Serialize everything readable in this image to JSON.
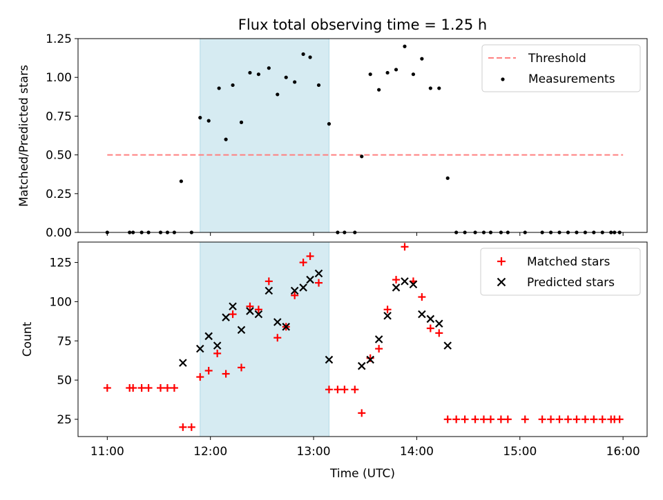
{
  "chart_data": [
    {
      "type": "scatter",
      "title": "Flux total observing time = 1.25 h",
      "ylabel": "Matched/Predicted stars",
      "xlabel": "",
      "xlim": [
        "10:43",
        "16:14"
      ],
      "ylim": [
        0,
        1.25
      ],
      "yticks": [
        "0.00",
        "0.25",
        "0.50",
        "0.75",
        "1.00",
        "1.25"
      ],
      "grid": false,
      "legend": "top-right",
      "shaded_span": [
        "11:54",
        "13:09"
      ],
      "threshold": {
        "name": "Threshold",
        "value": 0.5,
        "x_start": "11:00",
        "x_end": "16:00",
        "color": "#ff7f7f"
      },
      "series": [
        {
          "name": "Measurements",
          "color": "#000000",
          "x": [
            "11:00",
            "11:13",
            "11:15",
            "11:20",
            "11:24",
            "11:31",
            "11:35",
            "11:39",
            "11:43",
            "11:49",
            "11:54",
            "11:59",
            "12:05",
            "12:09",
            "12:13",
            "12:18",
            "12:23",
            "12:28",
            "12:34",
            "12:39",
            "12:44",
            "12:49",
            "12:54",
            "12:58",
            "13:03",
            "13:09",
            "13:14",
            "13:18",
            "13:24",
            "13:28",
            "13:33",
            "13:38",
            "13:43",
            "13:48",
            "13:53",
            "13:58",
            "14:03",
            "14:08",
            "14:13",
            "14:18",
            "14:23",
            "14:28",
            "14:34",
            "14:39",
            "14:43",
            "14:49",
            "14:53",
            "15:03",
            "15:13",
            "15:18",
            "15:23",
            "15:28",
            "15:33",
            "15:38",
            "15:43",
            "15:48",
            "15:53",
            "15:55",
            "15:58"
          ],
          "values": [
            0,
            0,
            0,
            0,
            0,
            0,
            0,
            0,
            0.33,
            0,
            0.74,
            0.72,
            0.93,
            0.6,
            0.95,
            0.71,
            1.03,
            1.02,
            1.06,
            0.89,
            1.0,
            0.97,
            1.15,
            1.13,
            0.95,
            0.7,
            0,
            0,
            0,
            0.49,
            1.02,
            0.92,
            1.03,
            1.05,
            1.2,
            1.02,
            1.12,
            0.93,
            0.93,
            0.35,
            0,
            0,
            0,
            0,
            0,
            0,
            0,
            0,
            0,
            0,
            0,
            0,
            0,
            0,
            0,
            0,
            0,
            0,
            0
          ]
        }
      ]
    },
    {
      "type": "scatter",
      "title": "",
      "ylabel": "Count",
      "xlabel": "Time (UTC)",
      "xlim": [
        "10:43",
        "16:14"
      ],
      "xticks": [
        "11:00",
        "12:00",
        "13:00",
        "14:00",
        "15:00",
        "16:00"
      ],
      "ylim": [
        14,
        138
      ],
      "yticks": [
        "25",
        "50",
        "75",
        "100",
        "125"
      ],
      "grid": false,
      "legend": "top-right",
      "shaded_span": [
        "11:54",
        "13:09"
      ],
      "series": [
        {
          "name": "Matched stars",
          "marker": "plus",
          "color": "#ff0000",
          "x": [
            "11:00",
            "11:13",
            "11:15",
            "11:20",
            "11:24",
            "11:31",
            "11:35",
            "11:39",
            "11:44",
            "11:49",
            "11:54",
            "11:59",
            "12:04",
            "12:09",
            "12:13",
            "12:18",
            "12:23",
            "12:28",
            "12:34",
            "12:39",
            "12:44",
            "12:49",
            "12:54",
            "12:58",
            "13:03",
            "13:09",
            "13:14",
            "13:18",
            "13:24",
            "13:28",
            "13:33",
            "13:38",
            "13:43",
            "13:48",
            "13:53",
            "13:58",
            "14:03",
            "14:08",
            "14:13",
            "14:18",
            "14:23",
            "14:28",
            "14:34",
            "14:39",
            "14:43",
            "14:49",
            "14:53",
            "15:03",
            "15:13",
            "15:18",
            "15:23",
            "15:28",
            "15:33",
            "15:38",
            "15:43",
            "15:48",
            "15:53",
            "15:55",
            "15:58"
          ],
          "values": [
            45,
            45,
            45,
            45,
            45,
            45,
            45,
            45,
            20,
            20,
            52,
            56,
            67,
            54,
            92,
            58,
            97,
            95,
            113,
            77,
            84,
            104,
            125,
            129,
            112,
            44,
            44,
            44,
            44,
            29,
            64,
            70,
            95,
            114,
            135,
            113,
            103,
            83,
            80,
            25,
            25,
            25,
            25,
            25,
            25,
            25,
            25,
            25,
            25,
            25,
            25,
            25,
            25,
            25,
            25,
            25,
            25,
            25,
            25
          ]
        },
        {
          "name": "Predicted stars",
          "marker": "x",
          "color": "#000000",
          "x": [
            "11:44",
            "11:54",
            "11:59",
            "12:04",
            "12:09",
            "12:13",
            "12:18",
            "12:23",
            "12:28",
            "12:34",
            "12:39",
            "12:44",
            "12:49",
            "12:54",
            "12:58",
            "13:03",
            "13:09",
            "13:28",
            "13:33",
            "13:38",
            "13:43",
            "13:48",
            "13:53",
            "13:58",
            "14:03",
            "14:08",
            "14:13",
            "14:18"
          ],
          "values": [
            61,
            70,
            78,
            72,
            90,
            97,
            82,
            94,
            92,
            107,
            87,
            84,
            107,
            109,
            114,
            118,
            63,
            59,
            63,
            76,
            91,
            109,
            113,
            111,
            92,
            89,
            86,
            72
          ]
        }
      ]
    }
  ]
}
